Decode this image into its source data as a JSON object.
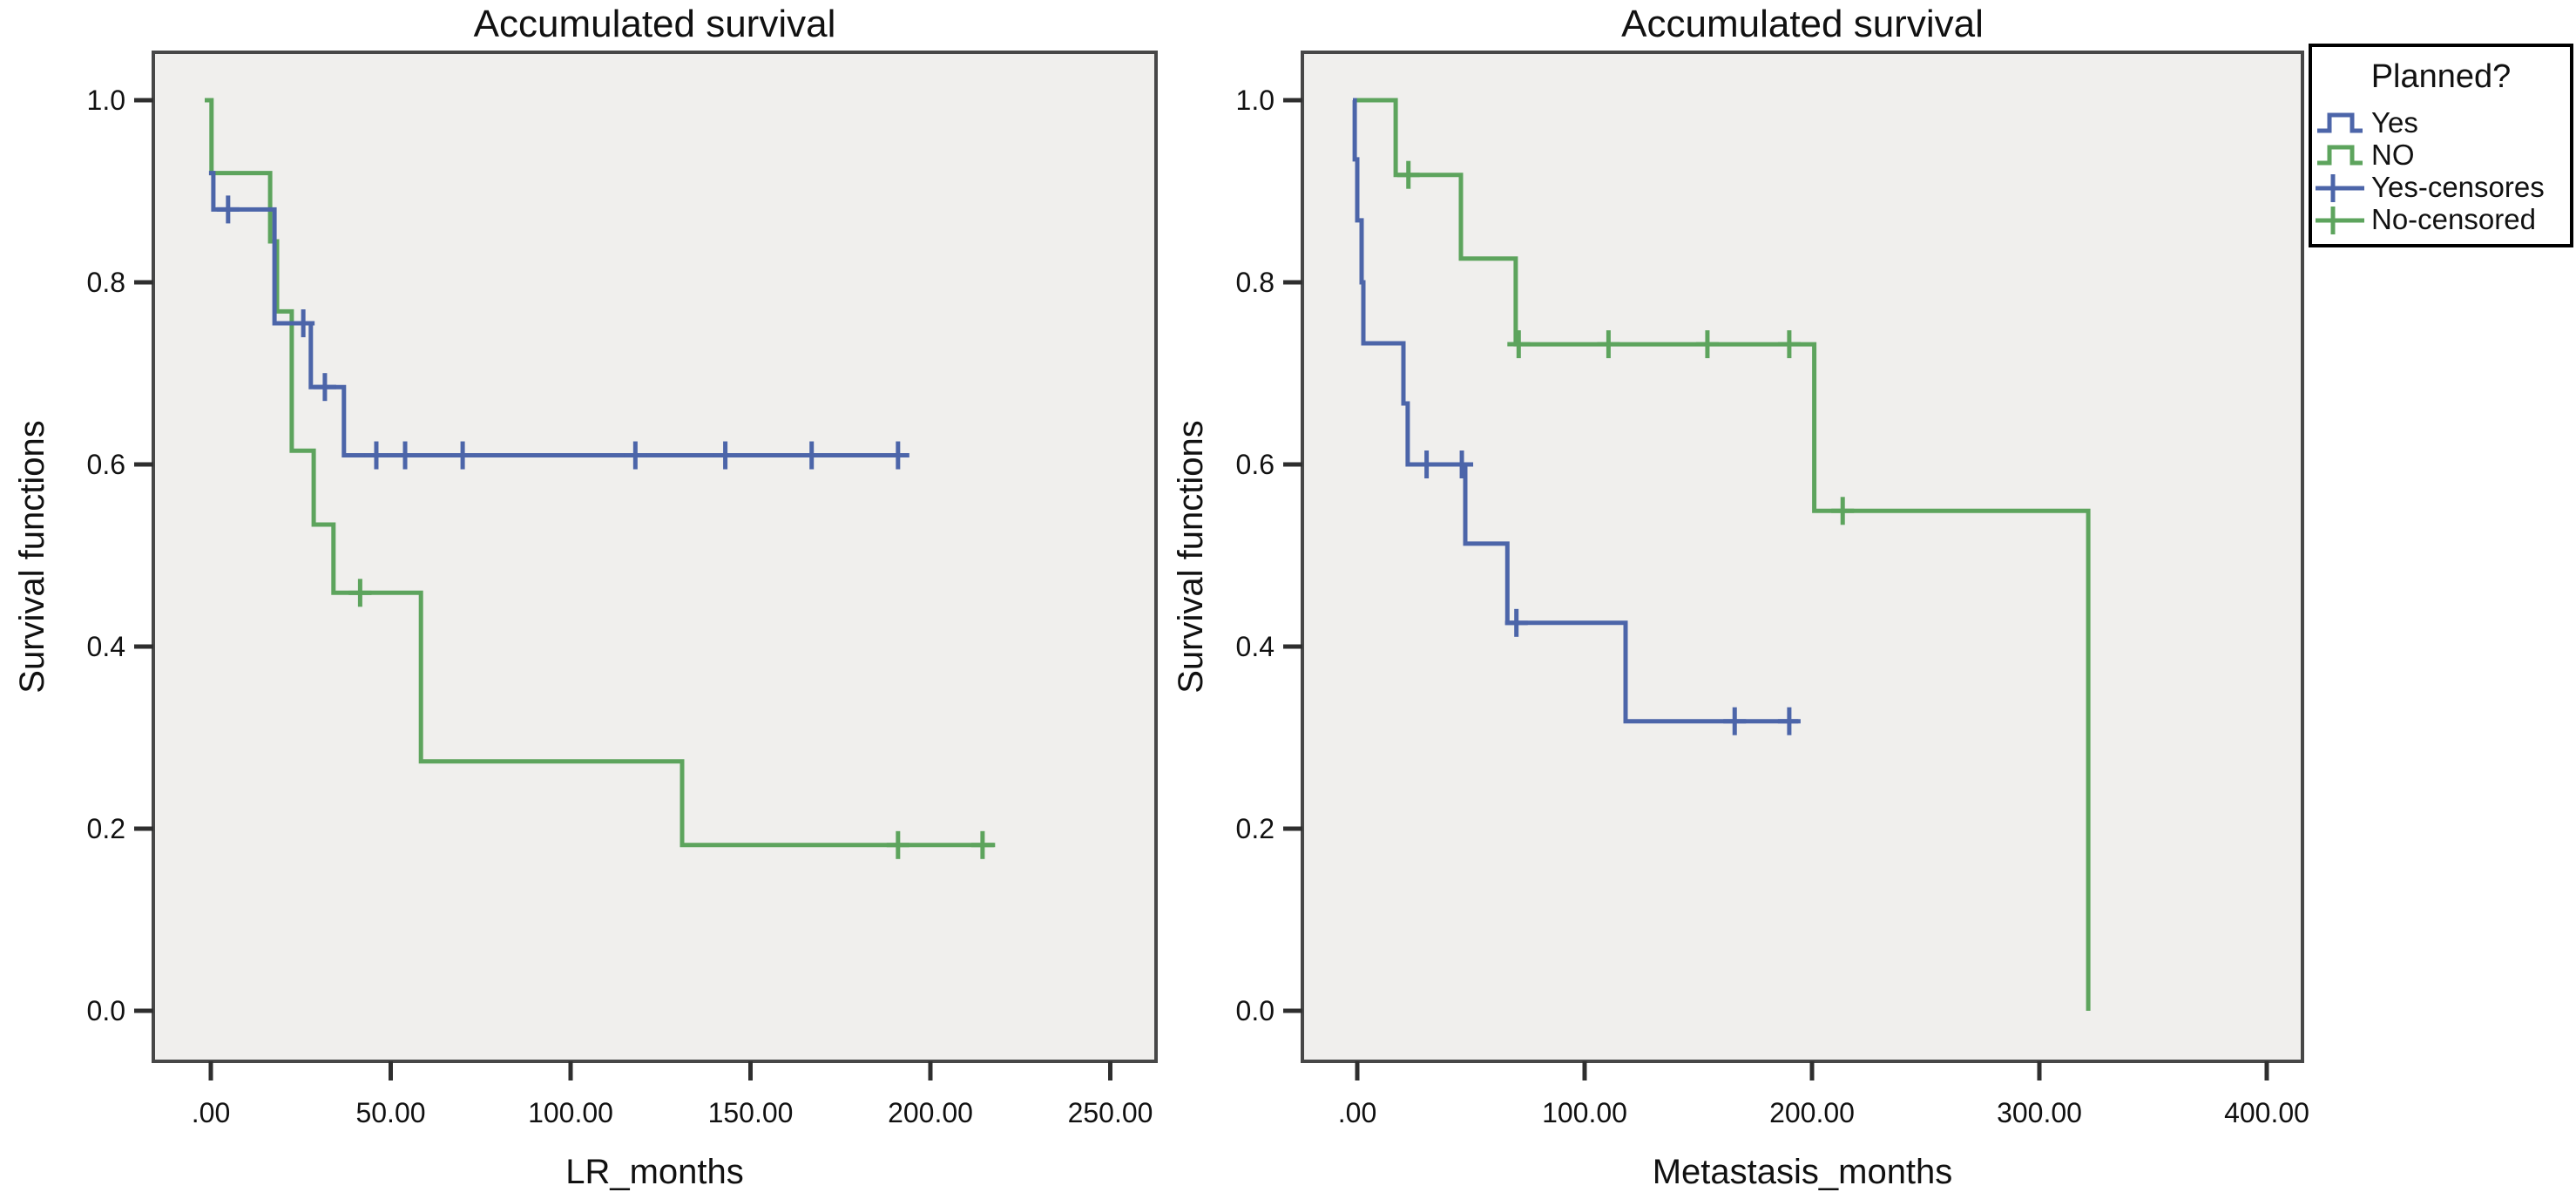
{
  "figure": {
    "background": "#ffffff",
    "plot_background": "#f0efed",
    "plot_border_color": "#474747",
    "tick_color": "#2e2e2e",
    "text_color": "#111111"
  },
  "colors": {
    "yes": "#4c65a9",
    "no": "#5da45d"
  },
  "legend": {
    "title": "Planned?",
    "position": "top-right",
    "border_color": "#000000",
    "background": "#ffffff",
    "items": [
      {
        "label": "Yes",
        "series": "yes",
        "glyph": "step-line"
      },
      {
        "label": "NO",
        "series": "no",
        "glyph": "step-line"
      },
      {
        "label": "Yes-censores",
        "series": "yes",
        "glyph": "censor-cross"
      },
      {
        "label": "No-censored",
        "series": "no",
        "glyph": "censor-cross"
      }
    ]
  },
  "chart_data": [
    {
      "id": "lr",
      "type": "line",
      "subtype": "kaplan-meier-step",
      "title": "Accumulated survival",
      "xlabel": "LR_months",
      "ylabel": "Survival functions",
      "xlim": [
        -16,
        263
      ],
      "ylim": [
        -0.055,
        1.055
      ],
      "grid": false,
      "x_ticks": [
        {
          "value": 0,
          "label": ".00"
        },
        {
          "value": 50,
          "label": "50.00"
        },
        {
          "value": 100,
          "label": "100.00"
        },
        {
          "value": 150,
          "label": "150.00"
        },
        {
          "value": 200,
          "label": "200.00"
        },
        {
          "value": 250,
          "label": "250.00"
        }
      ],
      "y_ticks": [
        {
          "value": 1.0,
          "label": "1.0"
        },
        {
          "value": 0.8,
          "label": "0.8"
        },
        {
          "value": 0.6,
          "label": "0.6"
        },
        {
          "value": 0.4,
          "label": "0.4"
        },
        {
          "value": 0.2,
          "label": "0.2"
        },
        {
          "value": 0.0,
          "label": "0.0"
        }
      ],
      "series": [
        {
          "id": "no",
          "name": "NO",
          "color": "#5da45d",
          "points": [
            [
              -1.7,
              1.0
            ],
            [
              0.2,
              0.92
            ],
            [
              16.5,
              0.845
            ],
            [
              18.4,
              0.768
            ],
            [
              22.5,
              0.615
            ],
            [
              28.6,
              0.534
            ],
            [
              34.1,
              0.459
            ],
            [
              58.4,
              0.274
            ],
            [
              131,
              0.182
            ]
          ],
          "end_month": 218,
          "censored": [
            [
              41.5,
              0.459
            ],
            [
              191,
              0.182
            ],
            [
              214.5,
              0.182
            ]
          ]
        },
        {
          "id": "yes",
          "name": "Yes",
          "color": "#4c65a9",
          "points": [
            [
              -0.5,
              0.92
            ],
            [
              0.7,
              0.88
            ],
            [
              17.7,
              0.755
            ],
            [
              27.8,
              0.685
            ],
            [
              37,
              0.61
            ]
          ],
          "end_month": 193.5,
          "censored": [
            [
              4.8,
              0.88
            ],
            [
              25.7,
              0.755
            ],
            [
              31.7,
              0.685
            ],
            [
              46,
              0.61
            ],
            [
              54,
              0.61
            ],
            [
              70,
              0.61
            ],
            [
              118,
              0.61
            ],
            [
              143,
              0.61
            ],
            [
              167,
              0.61
            ],
            [
              191,
              0.61
            ]
          ]
        }
      ]
    },
    {
      "id": "metastasis",
      "type": "line",
      "subtype": "kaplan-meier-step",
      "title": "Accumulated survival",
      "xlabel": "Metastasis_months",
      "ylabel": "Survival functions",
      "xlim": [
        -24,
        416
      ],
      "ylim": [
        -0.055,
        1.055
      ],
      "grid": false,
      "x_ticks": [
        {
          "value": 0,
          "label": ".00"
        },
        {
          "value": 100,
          "label": "100.00"
        },
        {
          "value": 200,
          "label": "200.00"
        },
        {
          "value": 300,
          "label": "300.00"
        },
        {
          "value": 400,
          "label": "400.00"
        }
      ],
      "y_ticks": [
        {
          "value": 1.0,
          "label": "1.0"
        },
        {
          "value": 0.8,
          "label": "0.8"
        },
        {
          "value": 0.6,
          "label": "0.6"
        },
        {
          "value": 0.4,
          "label": "0.4"
        },
        {
          "value": 0.2,
          "label": "0.2"
        },
        {
          "value": 0.0,
          "label": "0.0"
        }
      ],
      "series": [
        {
          "id": "no",
          "name": "NO",
          "color": "#5da45d",
          "points": [
            [
              -1.9,
              1.0
            ],
            [
              16.9,
              0.918
            ],
            [
              45.6,
              0.826
            ],
            [
              69.7,
              0.732
            ],
            [
              201,
              0.549
            ],
            [
              321.5,
              0.0
            ]
          ],
          "end_month": 321.5,
          "censored": [
            [
              22.5,
              0.918
            ],
            [
              71,
              0.732
            ],
            [
              110.5,
              0.732
            ],
            [
              154,
              0.732
            ],
            [
              190,
              0.732
            ],
            [
              213.5,
              0.549
            ]
          ]
        },
        {
          "id": "yes",
          "name": "Yes",
          "color": "#4c65a9",
          "points": [
            [
              -1.9,
              1.0
            ],
            [
              -1.1,
              0.935
            ],
            [
              0,
              0.868
            ],
            [
              1.9,
              0.8
            ],
            [
              2.7,
              0.733
            ],
            [
              20.3,
              0.667
            ],
            [
              22.2,
              0.6
            ],
            [
              47.5,
              0.513
            ],
            [
              66,
              0.426
            ],
            [
              118,
              0.318
            ]
          ],
          "end_month": 194,
          "censored": [
            [
              30.5,
              0.6
            ],
            [
              46,
              0.6
            ],
            [
              70,
              0.426
            ],
            [
              166,
              0.318
            ],
            [
              190,
              0.318
            ]
          ]
        }
      ]
    }
  ]
}
